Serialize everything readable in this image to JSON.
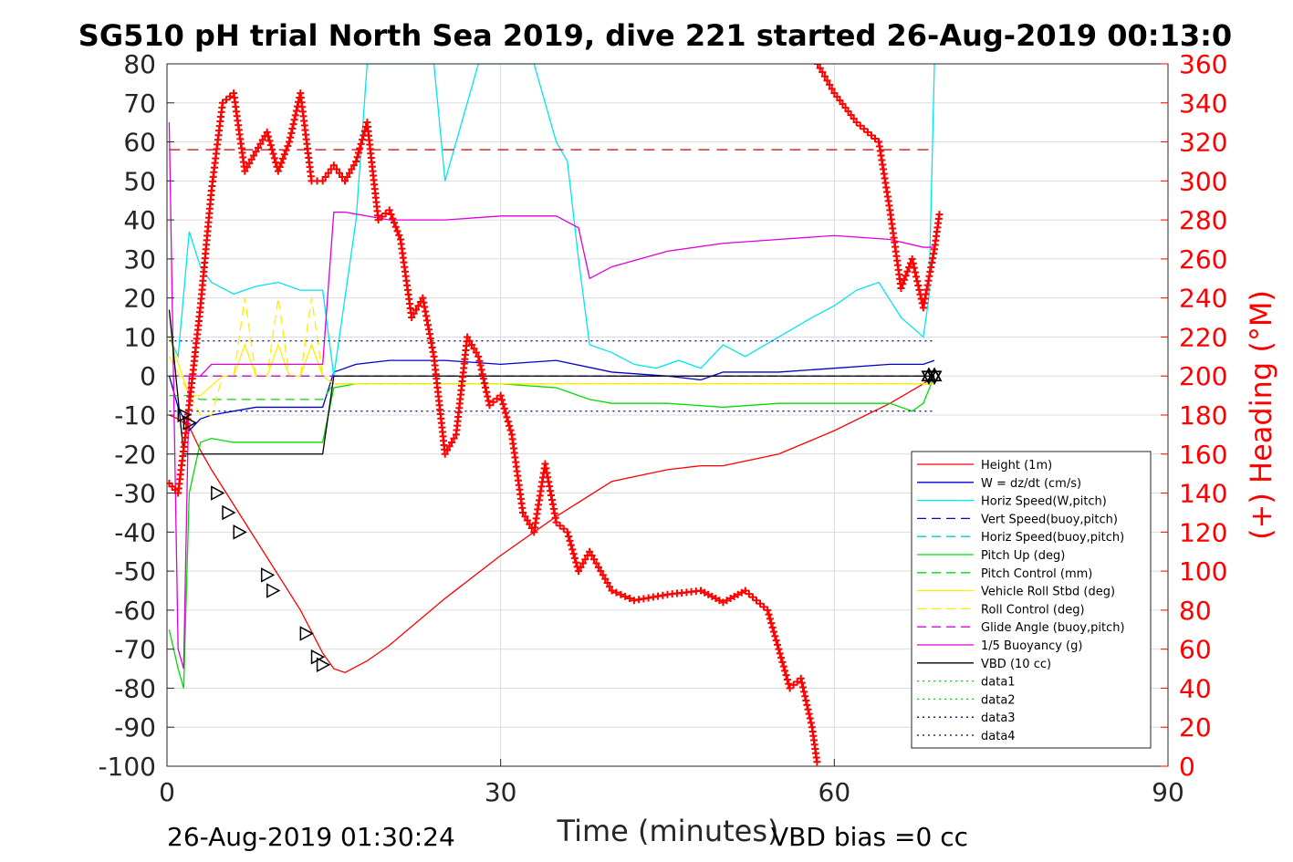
{
  "chart_data": {
    "type": "line",
    "title": "SG510 pH trial North Sea 2019, dive 221 started 26-Aug-2019 00:13:0",
    "xlabel": "Time (minutes)",
    "ylabel": "",
    "y2label": "(+) Heading (°M)",
    "xlim": [
      0,
      90
    ],
    "ylim": [
      -100,
      80
    ],
    "y2lim": [
      0,
      360
    ],
    "xticks": [
      "0",
      "30",
      "60",
      "90"
    ],
    "yticks": [
      "80",
      "70",
      "60",
      "50",
      "40",
      "30",
      "20",
      "10",
      "0",
      "-10",
      "-20",
      "-30",
      "-40",
      "-50",
      "-60",
      "-70",
      "-80",
      "-90",
      "-100"
    ],
    "y2ticks": [
      "360",
      "340",
      "320",
      "300",
      "280",
      "260",
      "240",
      "220",
      "200",
      "180",
      "160",
      "140",
      "120",
      "100",
      "80",
      "60",
      "40",
      "20",
      "0"
    ],
    "grid": true,
    "legend_position": "lower-right",
    "series": [
      {
        "name": "Height (1m)",
        "color": "#ff0000",
        "style": "solid",
        "x": [
          0.2,
          1,
          2,
          3,
          4,
          6,
          8,
          10,
          12,
          14,
          15,
          16,
          18,
          20,
          25,
          30,
          35,
          40,
          45,
          48,
          50,
          55,
          60,
          65,
          68,
          69
        ],
        "y": [
          -10,
          -11,
          -13,
          -19,
          -24,
          -33,
          -42,
          -51,
          -60,
          -71,
          -75,
          -76,
          -73,
          -69,
          -57,
          -46,
          -36,
          -27,
          -24,
          -23,
          -23,
          -20,
          -14,
          -7,
          -2,
          0
        ]
      },
      {
        "name": "W = dz/dt (cm/s)",
        "color": "#0000cc",
        "style": "solid",
        "x": [
          0.2,
          1,
          2,
          3,
          4,
          8,
          12,
          14,
          15,
          17,
          20,
          25,
          30,
          35,
          40,
          45,
          48,
          50,
          55,
          60,
          65,
          68,
          69
        ],
        "y": [
          0,
          -8,
          -14,
          -11,
          -10,
          -8,
          -8,
          -8,
          1,
          3,
          4,
          4,
          3,
          4,
          1,
          0,
          -1,
          1,
          1,
          2,
          3,
          3,
          4
        ]
      },
      {
        "name": "Horiz Speed(W,pitch)",
        "color": "#00e5ee",
        "style": "solid",
        "x": [
          0.2,
          1,
          2,
          3,
          4,
          6,
          8,
          10,
          12,
          14,
          15,
          16,
          17,
          18,
          19,
          20,
          24,
          25,
          28,
          30,
          33,
          35,
          36,
          37,
          38,
          40,
          42,
          44,
          46,
          48,
          50,
          52,
          55,
          58,
          60,
          62,
          64,
          66,
          68,
          68.5,
          69
        ],
        "y": [
          10,
          5,
          37,
          28,
          24,
          21,
          23,
          24,
          22,
          22,
          0,
          20,
          40,
          80,
          80,
          80,
          80,
          50,
          80,
          80,
          80,
          60,
          55,
          30,
          8,
          6,
          3,
          2,
          4,
          2,
          8,
          5,
          10,
          15,
          18,
          22,
          24,
          15,
          10,
          20,
          80
        ]
      },
      {
        "name": "Vert Speed(buoy,pitch)",
        "color": "#0000cc",
        "style": "dashed",
        "x": [
          0.2,
          69
        ],
        "y": [
          0,
          0
        ]
      },
      {
        "name": "Horiz Speed(buoy,pitch)",
        "color": "#00cccc",
        "style": "dashed",
        "x": [
          0.2,
          69
        ],
        "y": [
          0,
          0
        ]
      },
      {
        "name": "Pitch Up (deg)",
        "color": "#00dd00",
        "style": "solid",
        "x": [
          0.2,
          1,
          1.5,
          2,
          3,
          4,
          6,
          10,
          14,
          15,
          17,
          20,
          25,
          30,
          35,
          38,
          40,
          45,
          50,
          55,
          60,
          65,
          67,
          68,
          69
        ],
        "y": [
          -65,
          -75,
          -80,
          -30,
          -17,
          -16,
          -17,
          -17,
          -17,
          -3,
          -2,
          -2,
          -2,
          -2,
          -3,
          -6,
          -7,
          -7,
          -8,
          -7,
          -7,
          -7,
          -9,
          -7,
          0
        ]
      },
      {
        "name": "Pitch Control (mm)",
        "color": "#00dd00",
        "style": "dashed",
        "x": [
          0.2,
          2,
          3,
          4,
          14,
          15,
          69
        ],
        "y": [
          -5,
          -5,
          -6,
          -6,
          -6,
          -2,
          -2
        ]
      },
      {
        "name": "Vehicle Roll Stbd (deg)",
        "color": "#ffee00",
        "style": "solid",
        "x": [
          0.2,
          2,
          3,
          5,
          6,
          7,
          8,
          9,
          10,
          11,
          12,
          13,
          14,
          15,
          69
        ],
        "y": [
          10,
          -5,
          -5,
          0,
          0,
          8,
          0,
          0,
          8,
          0,
          0,
          8,
          0,
          -2,
          -2
        ]
      },
      {
        "name": "Roll Control (deg)",
        "color": "#ffee00",
        "style": "dashed",
        "x": [
          0.2,
          3,
          4,
          5,
          6,
          7,
          8,
          9,
          10,
          11,
          12,
          13,
          14,
          15,
          69
        ],
        "y": [
          5,
          -10,
          -10,
          0,
          0,
          20,
          0,
          0,
          20,
          0,
          0,
          20,
          0,
          -2,
          -2
        ]
      },
      {
        "name": "Glide Angle (buoy,pitch)",
        "color": "#dd00dd",
        "style": "dashed",
        "x": [
          0.2,
          69
        ],
        "y": [
          0,
          0
        ]
      },
      {
        "name": "1/5 Buoyancy (g)",
        "color": "#dd00dd",
        "style": "solid",
        "x": [
          0.2,
          1,
          1.5,
          2,
          3,
          4,
          10,
          14,
          15,
          16,
          20,
          25,
          30,
          35,
          37,
          38,
          40,
          45,
          50,
          55,
          60,
          65,
          68,
          69
        ],
        "y": [
          65,
          -70,
          -75,
          0,
          0,
          3,
          3,
          3,
          42,
          42,
          40,
          40,
          41,
          41,
          38,
          25,
          28,
          32,
          34,
          35,
          36,
          35,
          33,
          33
        ]
      },
      {
        "name": "VBD (10 cc)",
        "color": "#000000",
        "style": "solid",
        "x": [
          0.2,
          1.5,
          2,
          5,
          10,
          14,
          15,
          16,
          30,
          45,
          60,
          68,
          69
        ],
        "y": [
          17,
          -20,
          -20,
          -20,
          -20,
          -20,
          0,
          0,
          0,
          0,
          0,
          0,
          0
        ]
      },
      {
        "name": "data1",
        "color": "#00dd00",
        "style": "dotted",
        "x": [
          0,
          0
        ],
        "y": [
          0,
          0
        ]
      },
      {
        "name": "data2",
        "color": "#00dd00",
        "style": "dotted",
        "x": [
          0,
          0
        ],
        "y": [
          0,
          0
        ]
      },
      {
        "name": "data3",
        "color": "#000080",
        "style": "dotted",
        "x": [
          0.2,
          69
        ],
        "y": [
          9,
          9
        ]
      },
      {
        "name": "data4",
        "color": "#000080",
        "style": "dotted",
        "x": [
          0.2,
          69
        ],
        "y": [
          -9,
          -9
        ]
      }
    ],
    "reference_line": {
      "axis": "right",
      "value": 316,
      "color": "#cc0000",
      "style": "dashed",
      "x": [
        0.2,
        69
      ]
    },
    "heading_series": {
      "axis": "right",
      "marker": "+",
      "color": "#ff0000",
      "x": [
        0.2,
        1,
        2,
        3,
        4,
        5,
        6,
        7,
        8,
        9,
        10,
        11,
        12,
        13,
        14,
        15,
        16,
        17,
        18,
        19,
        20,
        21,
        22,
        23,
        24,
        25,
        26,
        27,
        28,
        29,
        30,
        31,
        32,
        33,
        34,
        35,
        36,
        37,
        38,
        39,
        40,
        42,
        45,
        48,
        50,
        52,
        54,
        56,
        57,
        58,
        58.5
      ],
      "y": [
        145,
        140,
        185,
        235,
        295,
        340,
        345,
        305,
        315,
        325,
        305,
        320,
        345,
        300,
        300,
        308,
        300,
        310,
        330,
        280,
        285,
        270,
        230,
        240,
        210,
        160,
        170,
        220,
        210,
        185,
        190,
        170,
        130,
        120,
        155,
        125,
        120,
        100,
        110,
        100,
        90,
        85,
        88,
        90,
        84,
        90,
        80,
        40,
        45,
        20,
        0
      ]
    },
    "heading_series_2": {
      "axis": "right",
      "marker": "+",
      "color": "#ff0000",
      "x": [
        58.5,
        60,
        62,
        64,
        65,
        66,
        67,
        68,
        69,
        69.5
      ],
      "y": [
        360,
        345,
        330,
        320,
        285,
        245,
        260,
        235,
        265,
        285
      ]
    },
    "markers": {
      "triangles_on_height": {
        "x": [
          1.5,
          2,
          4.5,
          5.5,
          6.5,
          9,
          9.5,
          12.5,
          13.5,
          14
        ],
        "y": [
          -10,
          -12,
          -30,
          -35,
          -40,
          -51,
          -55,
          -66,
          -72,
          -74
        ]
      },
      "surface_markers": {
        "x": [
          68.5,
          69
        ],
        "y": [
          0,
          0
        ]
      }
    },
    "legend": [
      "Height (1m)",
      "W = dz/dt (cm/s)",
      "Horiz Speed(W,pitch)",
      "Vert Speed(buoy,pitch)",
      "Horiz Speed(buoy,pitch)",
      "Pitch Up (deg)",
      "Pitch Control (mm)",
      "Vehicle Roll Stbd (deg)",
      "Roll Control (deg)",
      "Glide Angle (buoy,pitch)",
      "1/5 Buoyancy (g)",
      "VBD (10 cc)",
      "data1",
      "data2",
      "data3",
      "data4"
    ]
  },
  "footer": {
    "timestamp": "26-Aug-2019 01:30:24",
    "vbd_bias": "VBD bias =0 cc"
  }
}
